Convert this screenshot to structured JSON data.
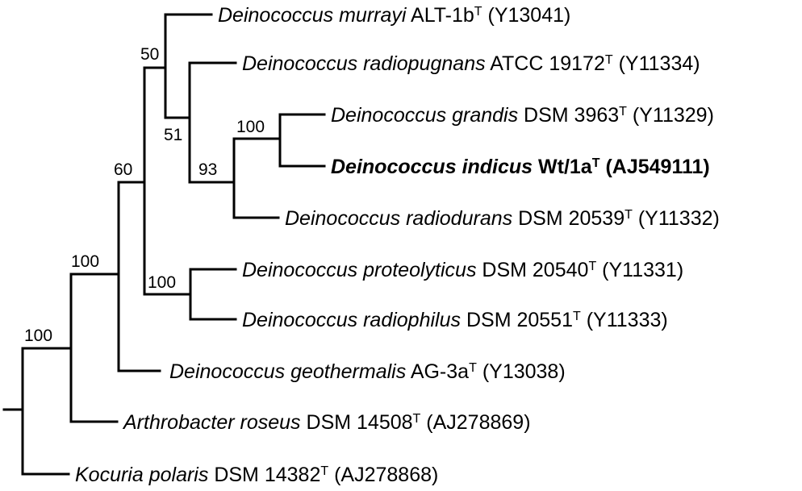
{
  "tree": {
    "taxa": [
      {
        "id": "murrayi",
        "genus": "Deinococcus",
        "epithet": "murrayi",
        "strain": "ALT-1b",
        "type_mark": "T",
        "accession": "(Y13041)",
        "bold": false
      },
      {
        "id": "radiopugnans",
        "genus": "Deinococcus",
        "epithet": "radiopugnans",
        "strain": "ATCC 19172",
        "type_mark": "T",
        "accession": "(Y11334)",
        "bold": false
      },
      {
        "id": "grandis",
        "genus": "Deinococcus",
        "epithet": "grandis",
        "strain": "DSM 3963",
        "type_mark": "T",
        "accession": "(Y11329)",
        "bold": false
      },
      {
        "id": "indicus",
        "genus": "Deinococcus",
        "epithet": "indicus",
        "strain": "Wt/1a",
        "type_mark": "T",
        "accession": "(AJ549111)",
        "bold": true
      },
      {
        "id": "radiodurans",
        "genus": "Deinococcus",
        "epithet": "radiodurans",
        "strain": "DSM 20539",
        "type_mark": "T",
        "accession": "(Y11332)",
        "bold": false
      },
      {
        "id": "proteolyticus",
        "genus": "Deinococcus",
        "epithet": "proteolyticus",
        "strain": "DSM 20540",
        "type_mark": "T",
        "accession": "(Y11331)",
        "bold": false
      },
      {
        "id": "radiophilus",
        "genus": "Deinococcus",
        "epithet": "radiophilus",
        "strain": "DSM 20551",
        "type_mark": "T",
        "accession": "(Y11333)",
        "bold": false
      },
      {
        "id": "geothermalis",
        "genus": "Deinococcus",
        "epithet": "geothermalis",
        "strain": "AG-3a",
        "type_mark": "T",
        "accession": "(Y13038)",
        "bold": false
      },
      {
        "id": "roseus",
        "genus": "Arthrobacter",
        "epithet": "roseus",
        "strain": "DSM 14508",
        "type_mark": "T",
        "accession": "(AJ278869)",
        "bold": false
      },
      {
        "id": "polaris",
        "genus": "Kocuria",
        "epithet": "polaris",
        "strain": "DSM 14382",
        "type_mark": "T",
        "accession": "(AJ278868)",
        "bold": false
      }
    ],
    "bootstrap": {
      "n_murrayi_clade": "50",
      "n_radiopugnans_clade": "51",
      "n_grandis_indicus_radiodurans": "93",
      "n_grandis_indicus": "100",
      "n_proteolyticus_radiophilus": "100",
      "n_deinococcus_upper": "60",
      "n_deinococcus": "100",
      "n_ingroup": "100"
    }
  }
}
